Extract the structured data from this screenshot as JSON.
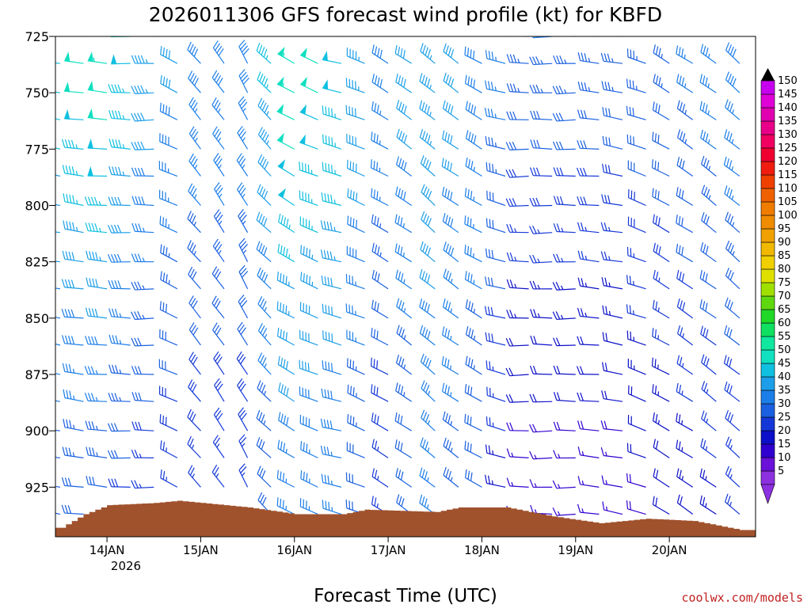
{
  "chart_data": {
    "type": "wind_barb_time_height",
    "title": "2026011306 GFS forecast wind profile (kt) for KBFD",
    "xlabel": "Forecast Time (UTC)",
    "ylabel": "",
    "y_axis": {
      "unit": "hPa",
      "range": [
        725,
        947
      ],
      "ticks": [
        725,
        750,
        775,
        800,
        825,
        850,
        875,
        900,
        925
      ],
      "tick_labels": [
        "725",
        "750",
        "775",
        "800",
        "825",
        "850",
        "875",
        "900",
        "925"
      ]
    },
    "x_axis": {
      "range_days": [
        -0.55,
        6.92
      ],
      "ticks_days": [
        0,
        1,
        2,
        3,
        4,
        5,
        6
      ],
      "tick_labels": [
        "14JAN",
        "15JAN",
        "16JAN",
        "17JAN",
        "18JAN",
        "19JAN",
        "20JAN"
      ],
      "year_label": "2026"
    },
    "barb_levels": [
      725,
      737,
      750,
      762,
      775,
      787,
      800,
      812,
      825,
      837,
      850,
      862,
      875,
      887,
      900,
      912,
      925,
      937
    ],
    "times_hours": [
      -12,
      -6,
      0,
      6,
      12,
      18,
      24,
      30,
      36,
      42,
      48,
      54,
      60,
      66,
      72,
      78,
      84,
      90,
      96,
      102,
      108,
      114,
      120,
      126,
      132,
      138,
      144,
      150,
      156,
      162
    ],
    "wind_profile_keyframes": [
      {
        "hour": -12,
        "dir_deg": 280,
        "speed_top_kt": 50,
        "speed_bottom_kt": 30
      },
      {
        "hour": 0,
        "dir_deg": 275,
        "speed_top_kt": 55,
        "speed_bottom_kt": 30
      },
      {
        "hour": 12,
        "dir_deg": 270,
        "speed_top_kt": 45,
        "speed_bottom_kt": 25
      },
      {
        "hour": 24,
        "dir_deg": 320,
        "speed_top_kt": 40,
        "speed_bottom_kt": 25
      },
      {
        "hour": 36,
        "dir_deg": 330,
        "speed_top_kt": 40,
        "speed_bottom_kt": 25
      },
      {
        "hour": 48,
        "dir_deg": 300,
        "speed_top_kt": 55,
        "speed_bottom_kt": 35
      },
      {
        "hour": 60,
        "dir_deg": 285,
        "speed_top_kt": 50,
        "speed_bottom_kt": 35
      },
      {
        "hour": 72,
        "dir_deg": 300,
        "speed_top_kt": 40,
        "speed_bottom_kt": 25
      },
      {
        "hour": 84,
        "dir_deg": 310,
        "speed_top_kt": 45,
        "speed_bottom_kt": 35
      },
      {
        "hour": 96,
        "dir_deg": 300,
        "speed_top_kt": 40,
        "speed_bottom_kt": 30
      },
      {
        "hour": 108,
        "dir_deg": 270,
        "speed_top_kt": 35,
        "speed_bottom_kt": 15
      },
      {
        "hour": 120,
        "dir_deg": 270,
        "speed_top_kt": 35,
        "speed_bottom_kt": 15
      },
      {
        "hour": 132,
        "dir_deg": 280,
        "speed_top_kt": 35,
        "speed_bottom_kt": 15
      },
      {
        "hour": 144,
        "dir_deg": 300,
        "speed_top_kt": 35,
        "speed_bottom_kt": 20
      },
      {
        "hour": 162,
        "dir_deg": 310,
        "speed_top_kt": 40,
        "speed_bottom_kt": 25
      }
    ],
    "surface_pressure_keyframes": [
      {
        "hour": -12,
        "pressure_hpa": 943
      },
      {
        "hour": -6,
        "pressure_hpa": 937
      },
      {
        "hour": 0,
        "pressure_hpa": 933
      },
      {
        "hour": 12,
        "pressure_hpa": 932
      },
      {
        "hour": 18,
        "pressure_hpa": 931
      },
      {
        "hour": 24,
        "pressure_hpa": 932
      },
      {
        "hour": 36,
        "pressure_hpa": 934
      },
      {
        "hour": 48,
        "pressure_hpa": 937
      },
      {
        "hour": 60,
        "pressure_hpa": 937
      },
      {
        "hour": 66,
        "pressure_hpa": 935
      },
      {
        "hour": 84,
        "pressure_hpa": 936
      },
      {
        "hour": 90,
        "pressure_hpa": 934
      },
      {
        "hour": 102,
        "pressure_hpa": 934
      },
      {
        "hour": 114,
        "pressure_hpa": 938
      },
      {
        "hour": 126,
        "pressure_hpa": 941
      },
      {
        "hour": 138,
        "pressure_hpa": 939
      },
      {
        "hour": 150,
        "pressure_hpa": 940
      },
      {
        "hour": 162,
        "pressure_hpa": 944
      }
    ],
    "colorbar": {
      "levels": [
        "5",
        "10",
        "15",
        "20",
        "25",
        "30",
        "35",
        "40",
        "45",
        "50",
        "55",
        "60",
        "65",
        "70",
        "75",
        "80",
        "85",
        "90",
        "95",
        "100",
        "105",
        "110",
        "115",
        "120",
        "125",
        "130",
        "135",
        "140",
        "145",
        "150"
      ],
      "colors": [
        "#8c30e0",
        "#6a10d8",
        "#3000d0",
        "#0c10c8",
        "#1438d8",
        "#1a60e0",
        "#1c7ee8",
        "#1c9ee8",
        "#10c0e0",
        "#10e0c0",
        "#10e8a0",
        "#10e060",
        "#20d828",
        "#60d810",
        "#a0e000",
        "#e0e000",
        "#f0d000",
        "#f0b800",
        "#f0a000",
        "#f08c00",
        "#f07c00",
        "#f06000",
        "#f04000",
        "#f01c10",
        "#f00030",
        "#f00060",
        "#e80088",
        "#e000b0",
        "#e000d8",
        "#c800f0"
      ],
      "min_arrow_color": "#8c30e0",
      "max_arrow_color": "#000000"
    },
    "terrain_color": "#a0522d"
  },
  "labels": {
    "title": "2026011306 GFS forecast wind profile (kt) for KBFD",
    "xlabel": "Forecast Time (UTC)",
    "year": "2026",
    "credit": "coolwx.com/models",
    "credit_color": "#c02020"
  }
}
